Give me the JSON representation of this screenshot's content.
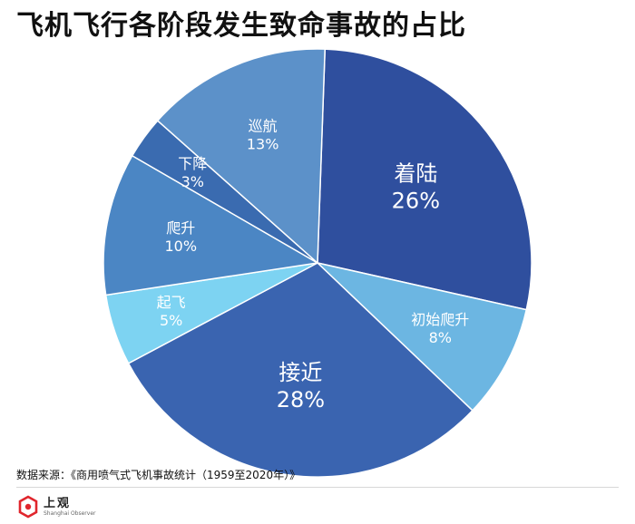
{
  "title": "飞机飞行各阶段发生致命事故的占比",
  "source": "数据来源：《商用喷气式飞机事故统计（1959至2020年）》",
  "brand": {
    "name_cn": "上观",
    "name_en": "Shanghai Observer",
    "logo_color": "#e0262d"
  },
  "chart_data": {
    "type": "pie",
    "categories": [
      "着陆",
      "初始爬升",
      "接近",
      "起飞",
      "爬升",
      "下降",
      "巡航"
    ],
    "values": [
      26,
      8,
      28,
      5,
      10,
      3,
      13
    ],
    "labels": [
      "26%",
      "8%",
      "28%",
      "5%",
      "10%",
      "3%",
      "13%"
    ],
    "colors": [
      "#2f4f9e",
      "#6cb6e2",
      "#3a64b0",
      "#7dd3f2",
      "#4b86c4",
      "#3a6bb0",
      "#5c91c9"
    ],
    "title": "飞机飞行各阶段发生致命事故的占比",
    "legend": "none"
  }
}
